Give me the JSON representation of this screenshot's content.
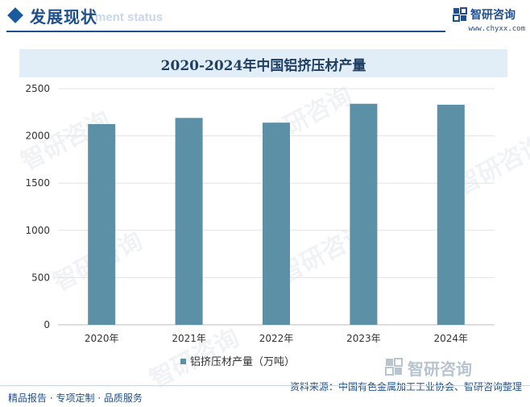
{
  "header": {
    "section_title": "发展现状",
    "section_subtitle": "ment status",
    "brand_name": "智研咨询",
    "brand_url": "www.chyxx.com"
  },
  "chart_data": {
    "type": "bar",
    "title": "2020-2024年中国铝挤压材产量",
    "categories": [
      "2020年",
      "2021年",
      "2022年",
      "2023年",
      "2024年"
    ],
    "series": [
      {
        "name": "铝挤压材产量（万吨）",
        "values": [
          2125,
          2190,
          2140,
          2340,
          2330
        ]
      }
    ],
    "ylim": [
      0,
      2500
    ],
    "yticks": [
      0,
      500,
      1000,
      1500,
      2000,
      2500
    ],
    "grid": "horizontal",
    "legend_position": "bottom",
    "colors": {
      "bar": "#5b90a6"
    }
  },
  "footer": {
    "left": "精品报告 · 专项定制 · 品质服务",
    "source": "资料来源：中国有色金属加工工业协会、智研咨询整理",
    "watermark_brand": "智研咨询"
  }
}
